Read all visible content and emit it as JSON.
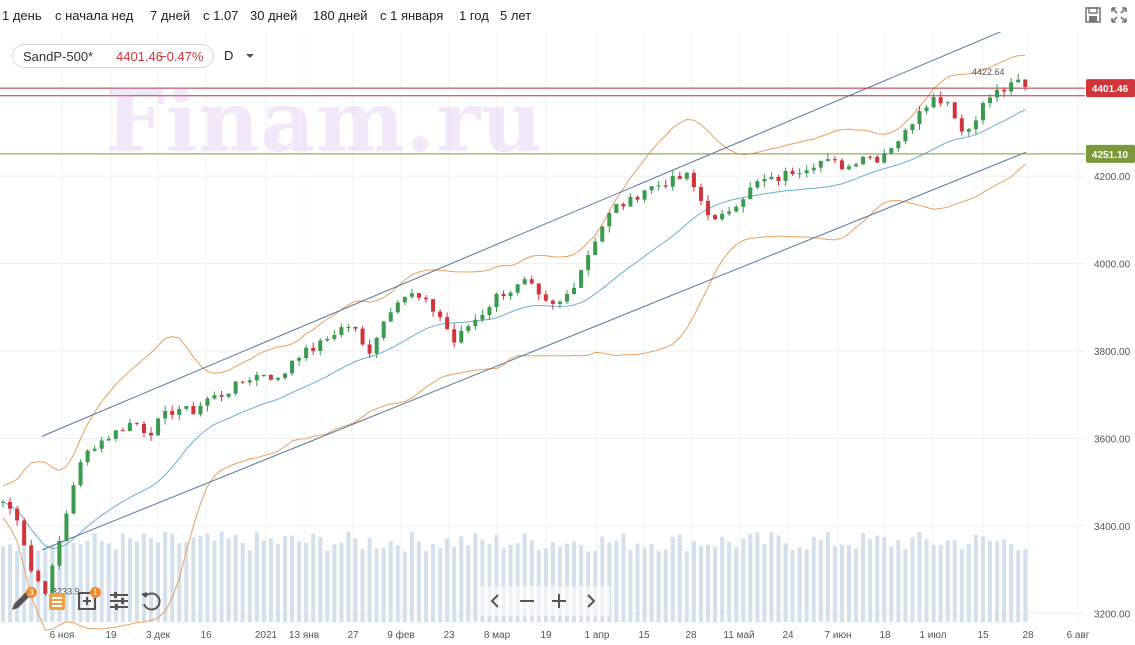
{
  "toolbar": {
    "periods": [
      "1 день",
      "с начала нед",
      "7 дней",
      "с 1.07",
      "30 дней",
      "180 дней",
      "с 1 января",
      "1 год",
      "5 лет"
    ],
    "save_icon": "save-icon",
    "fullscreen_icon": "fullscreen-icon"
  },
  "instrument": {
    "name": "SandP-500*",
    "price": "4401.46",
    "change": "−0.47%",
    "timeframe": "D"
  },
  "watermark": "Finam.ru",
  "colors": {
    "up": "#3a9b4f",
    "down": "#d0353a",
    "bollinger": "#e8a060",
    "ma": "#6aaed6",
    "channel": "#5577a0",
    "price_line": "#b8333a",
    "support_line": "#7a9a3a",
    "volume": "#c9d9e8"
  },
  "tools": {
    "draw_badge": "3",
    "layers_badge": "1"
  },
  "chart_data": {
    "type": "candlestick",
    "ylim": [
      3180,
      4530
    ],
    "y_ticks": [
      "3200.00",
      "3400.00",
      "3600.00",
      "3800.00",
      "4000.00",
      "4200.00"
    ],
    "x_ticks": [
      "6 ноя",
      "19",
      "3 дек",
      "16",
      "2021",
      "13 янв",
      "27",
      "9 фев",
      "23",
      "8 мар",
      "19",
      "1 апр",
      "15",
      "28",
      "11 май",
      "24",
      "7 июн",
      "18",
      "1 июл",
      "15",
      "28",
      "6 авг"
    ],
    "price_labels": [
      {
        "value": 4401.46,
        "text": "4401.46",
        "color": "#d0353a"
      },
      {
        "value": 4251.1,
        "text": "4251.10",
        "color": "#7a9a3a"
      }
    ],
    "horizontal_lines": [
      4401.46,
      4384,
      4251.1
    ],
    "annotations": [
      {
        "text": "4422.64",
        "x": 1003,
        "y": 4422.64
      },
      {
        "text": "3233.9",
        "x": 30,
        "y": 3233.9
      }
    ],
    "channel_upper": [
      [
        12,
        3605
      ],
      [
        1008,
        4555
      ]
    ],
    "channel_lower": [
      [
        12,
        3345
      ],
      [
        1008,
        4255
      ]
    ],
    "key_prices": [
      [
        0,
        3455
      ],
      [
        10,
        3420
      ],
      [
        20,
        3290
      ],
      [
        30,
        3250
      ],
      [
        40,
        3380
      ],
      [
        50,
        3520
      ],
      [
        60,
        3580
      ],
      [
        70,
        3600
      ],
      [
        80,
        3620
      ],
      [
        90,
        3640
      ],
      [
        100,
        3610
      ],
      [
        110,
        3650
      ],
      [
        120,
        3670
      ],
      [
        130,
        3660
      ],
      [
        140,
        3690
      ],
      [
        150,
        3700
      ],
      [
        160,
        3720
      ],
      [
        170,
        3740
      ],
      [
        180,
        3750
      ],
      [
        190,
        3730
      ],
      [
        200,
        3790
      ],
      [
        210,
        3800
      ],
      [
        220,
        3820
      ],
      [
        230,
        3850
      ],
      [
        240,
        3860
      ],
      [
        250,
        3790
      ],
      [
        260,
        3860
      ],
      [
        270,
        3920
      ],
      [
        280,
        3930
      ],
      [
        290,
        3910
      ],
      [
        300,
        3880
      ],
      [
        310,
        3820
      ],
      [
        320,
        3860
      ],
      [
        330,
        3890
      ],
      [
        340,
        3930
      ],
      [
        350,
        3940
      ],
      [
        360,
        3960
      ],
      [
        370,
        3910
      ],
      [
        380,
        3900
      ],
      [
        390,
        3940
      ],
      [
        400,
        4010
      ],
      [
        410,
        4080
      ],
      [
        420,
        4130
      ],
      [
        430,
        4140
      ],
      [
        440,
        4170
      ],
      [
        450,
        4180
      ],
      [
        460,
        4190
      ],
      [
        470,
        4200
      ],
      [
        480,
        4140
      ],
      [
        490,
        4090
      ],
      [
        500,
        4130
      ],
      [
        510,
        4160
      ],
      [
        520,
        4190
      ],
      [
        530,
        4190
      ],
      [
        540,
        4210
      ],
      [
        550,
        4220
      ],
      [
        560,
        4235
      ],
      [
        570,
        4230
      ],
      [
        580,
        4220
      ],
      [
        590,
        4250
      ],
      [
        600,
        4240
      ],
      [
        610,
        4270
      ],
      [
        620,
        4300
      ],
      [
        630,
        4360
      ],
      [
        640,
        4380
      ],
      [
        650,
        4370
      ],
      [
        660,
        4290
      ],
      [
        670,
        4350
      ],
      [
        680,
        4390
      ],
      [
        690,
        4400
      ],
      [
        700,
        4422.64
      ],
      [
        702,
        4401.46
      ]
    ],
    "volume_level": 0.75
  }
}
